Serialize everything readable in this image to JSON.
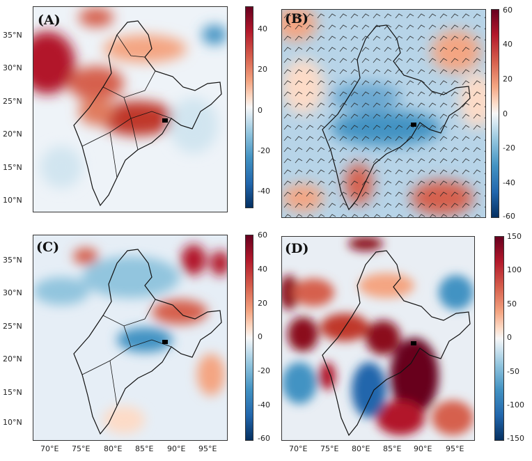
{
  "panels": [
    {
      "label": "(A)",
      "colorbar_ticks": [
        "40",
        "20",
        "0",
        "-20",
        "-40"
      ],
      "colorbar_range": [
        -50,
        50
      ]
    },
    {
      "label": "(B)",
      "colorbar_ticks": [
        "60",
        "40",
        "20",
        "0",
        "-20",
        "-40",
        "-60"
      ],
      "colorbar_range": [
        -60,
        60
      ]
    },
    {
      "label": "(C)",
      "colorbar_ticks": [
        "60",
        "40",
        "20",
        "0",
        "-20",
        "-40",
        "-60"
      ],
      "colorbar_range": [
        -60,
        60
      ]
    },
    {
      "label": "(D)",
      "colorbar_ticks": [
        "150",
        "100",
        "50",
        "0",
        "-50",
        "-100",
        "-150"
      ],
      "colorbar_range": [
        -150,
        150
      ]
    }
  ],
  "lat_ticks": [
    "35°N",
    "30°N",
    "25°N",
    "20°N",
    "15°N",
    "10°N"
  ],
  "lon_ticks": [
    "70°E",
    "75°E",
    "80°E",
    "85°E",
    "90°E",
    "95°E"
  ],
  "colormap": {
    "max": "#67001f",
    "mid": "#f7f7f7",
    "min": "#053061"
  }
}
